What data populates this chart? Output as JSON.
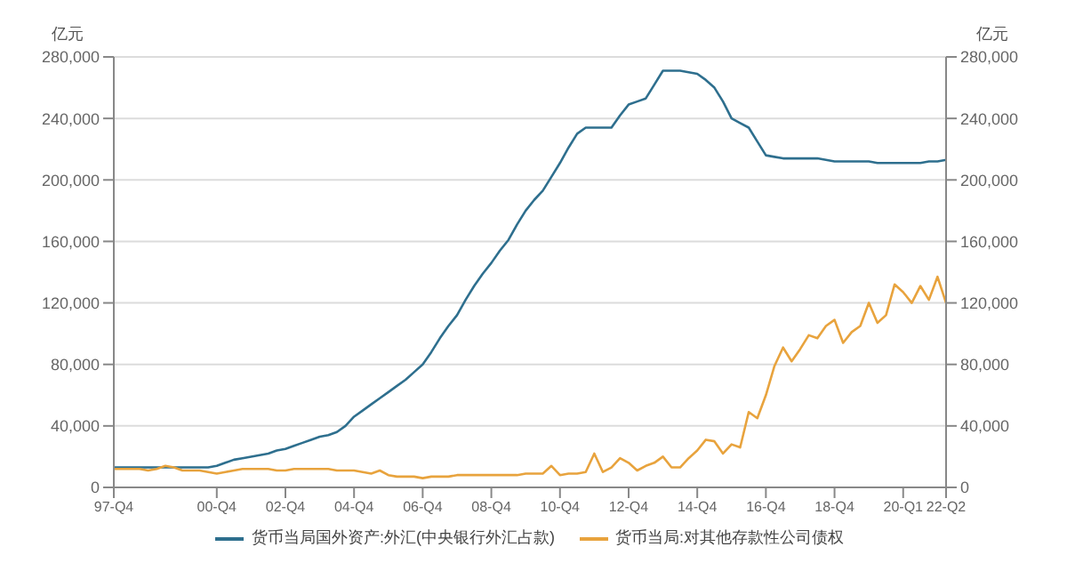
{
  "chart_data": {
    "type": "line",
    "ylabel": "亿元",
    "y2label": "亿元",
    "categories": [
      "97-Q4",
      null,
      null,
      null,
      null,
      null,
      null,
      null,
      null,
      null,
      null,
      null,
      "00-Q4",
      null,
      null,
      null,
      null,
      null,
      null,
      null,
      "02-Q4",
      null,
      null,
      null,
      null,
      null,
      null,
      null,
      "04-Q4",
      null,
      null,
      null,
      null,
      null,
      null,
      null,
      "06-Q4",
      null,
      null,
      null,
      null,
      null,
      null,
      null,
      "08-Q4",
      null,
      null,
      null,
      null,
      null,
      null,
      null,
      "10-Q4",
      null,
      null,
      null,
      null,
      null,
      null,
      null,
      "12-Q4",
      null,
      null,
      null,
      null,
      null,
      null,
      null,
      "14-Q4",
      null,
      null,
      null,
      null,
      null,
      null,
      null,
      "16-Q4",
      null,
      null,
      null,
      null,
      null,
      null,
      null,
      "18-Q4",
      null,
      null,
      null,
      null,
      null,
      null,
      null,
      "20-Q1",
      null,
      null,
      null,
      null,
      "22-Q2"
    ],
    "series": [
      {
        "name": "货币当局国外资产:外汇(中央银行外汇占款)",
        "color": "#2e6f8e",
        "values": [
          13000,
          13000,
          13000,
          13000,
          13000,
          13000,
          13000,
          13000,
          13000,
          13000,
          13000,
          13000,
          14000,
          16000,
          18000,
          19000,
          20000,
          21000,
          22000,
          24000,
          25000,
          27000,
          29000,
          31000,
          33000,
          34000,
          36000,
          40000,
          46000,
          50000,
          54000,
          58000,
          62000,
          66000,
          70000,
          75000,
          80000,
          88000,
          97000,
          105000,
          112000,
          122000,
          131000,
          139000,
          146000,
          154000,
          161000,
          171000,
          180000,
          187000,
          193000,
          202000,
          211000,
          221000,
          230000,
          234000,
          234000,
          234000,
          234000,
          242000,
          249000,
          251000,
          253000,
          262000,
          271000,
          271000,
          271000,
          270000,
          269000,
          265000,
          260000,
          251000,
          240000,
          237000,
          234000,
          225000,
          216000,
          215000,
          214000,
          214000,
          214000,
          214000,
          214000,
          213000,
          212000,
          212000,
          212000,
          212000,
          212000,
          211000,
          211000,
          211000,
          211000,
          211000,
          211000,
          212000,
          212000,
          213000
        ]
      },
      {
        "name": "货币当局:对其他存款性公司债权",
        "color": "#e8a33d",
        "values": [
          12000,
          12000,
          12000,
          12000,
          11000,
          12000,
          14000,
          13000,
          11000,
          11000,
          11000,
          10000,
          9000,
          10000,
          11000,
          12000,
          12000,
          12000,
          12000,
          11000,
          11000,
          12000,
          12000,
          12000,
          12000,
          12000,
          11000,
          11000,
          11000,
          10000,
          9000,
          11000,
          8000,
          7000,
          7000,
          7000,
          6000,
          7000,
          7000,
          7000,
          8000,
          8000,
          8000,
          8000,
          8000,
          8000,
          8000,
          8000,
          9000,
          9000,
          9000,
          14000,
          8000,
          9000,
          9000,
          10000,
          22000,
          10000,
          13000,
          19000,
          16000,
          11000,
          14000,
          16000,
          20000,
          13000,
          13000,
          19000,
          24000,
          31000,
          30000,
          22000,
          28000,
          26000,
          49000,
          45000,
          60000,
          79000,
          91000,
          82000,
          90000,
          99000,
          97000,
          105000,
          109000,
          94000,
          101000,
          105000,
          120000,
          107000,
          112000,
          132000,
          127000,
          120000,
          131000,
          122000,
          137000,
          120000
        ]
      }
    ],
    "ylim": [
      0,
      280000
    ],
    "yticks": [
      0,
      {
        "value": 40000,
        "label": "40,000"
      },
      {
        "value": 80000,
        "label": "80,000"
      },
      {
        "value": 120000,
        "label": "120,000"
      },
      {
        "value": 160000,
        "label": "160,000"
      },
      {
        "value": 200000,
        "label": "200,000"
      },
      {
        "value": 240000,
        "label": "240,000"
      },
      {
        "value": 280000,
        "label": "280,000"
      }
    ],
    "y2lim": [
      0,
      280000
    ],
    "y2ticks": [
      0,
      {
        "value": 40000,
        "label": "40,000"
      },
      {
        "value": 80000,
        "label": "80,000"
      },
      {
        "value": 120000,
        "label": "120,000"
      },
      {
        "value": 160000,
        "label": "160,000"
      },
      {
        "value": 200000,
        "label": "200,000"
      },
      {
        "value": 240000,
        "label": "240,000"
      },
      {
        "value": 280000,
        "label": "280,000"
      }
    ],
    "grid": "y",
    "legend": "bottom",
    "marker": "none",
    "line_style": "solid"
  }
}
